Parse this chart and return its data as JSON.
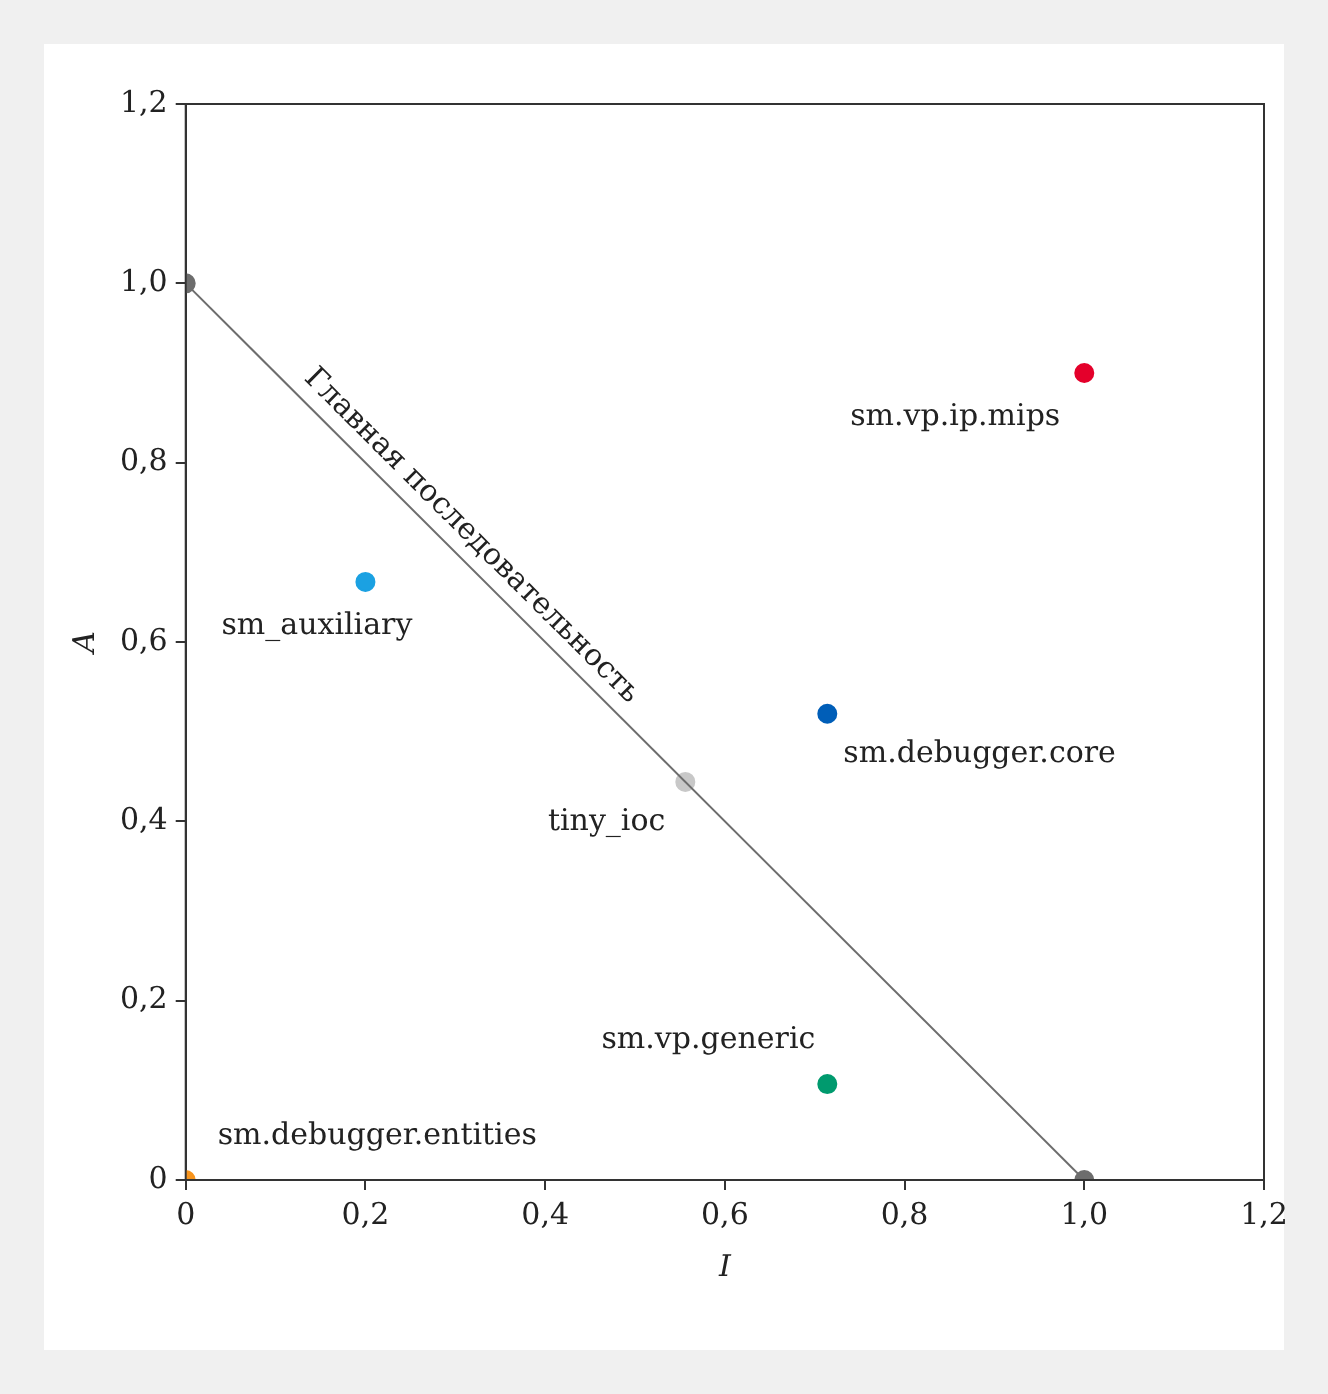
{
  "chart_data": {
    "type": "scatter",
    "xlabel": "I",
    "ylabel": "A",
    "xlim": [
      0,
      1.2
    ],
    "ylim": [
      0,
      1.2
    ],
    "xticks": [
      0,
      {
        "value": 0.2,
        "label": "0,2"
      },
      {
        "value": 0.4,
        "label": "0,4"
      },
      {
        "value": 0.6,
        "label": "0,6"
      },
      {
        "value": 0.8,
        "label": "0,8"
      },
      {
        "value": 1,
        "label": "1,0"
      },
      {
        "value": 1.2,
        "label": "1,2"
      }
    ],
    "yticks": [
      0,
      {
        "value": 0.2,
        "label": "0,2"
      },
      {
        "value": 0.4,
        "label": "0,4"
      },
      {
        "value": 0.6,
        "label": "0,6"
      },
      {
        "value": 0.8,
        "label": "0,8"
      },
      {
        "value": 1,
        "label": "1,0"
      },
      {
        "value": 1.2,
        "label": "1,2"
      }
    ],
    "grid": false,
    "legend": false,
    "marker": "circle",
    "annotations": [
      {
        "text": "Главная последовательность",
        "x": 0.3,
        "y": 0.7
      }
    ],
    "series": [
      {
        "type": "line",
        "color": "#6d6d6d",
        "x": [
          0,
          1
        ],
        "values": [
          1,
          0
        ]
      },
      {
        "name": "sm.vp.ip.mips",
        "color": "#e4002b",
        "x": [
          1
        ],
        "values": [
          0.9
        ]
      },
      {
        "name": "sm_auxiliary",
        "color": "#1ba1e2",
        "x": [
          0.2
        ],
        "values": [
          0.667
        ]
      },
      {
        "name": "sm.debugger.core",
        "color": "#005eb8",
        "x": [
          0.714
        ],
        "values": [
          0.52
        ]
      },
      {
        "name": "tiny_ioc",
        "color": "#c8c8c8",
        "x": [
          0.556
        ],
        "values": [
          0.444
        ]
      },
      {
        "name": "sm.vp.generic",
        "color": "#009a6e",
        "x": [
          0.714
        ],
        "values": [
          0.107
        ]
      },
      {
        "name": "sm.debugger.entities",
        "color": "#f7941d",
        "x": [
          0
        ],
        "values": [
          0
        ]
      }
    ]
  }
}
